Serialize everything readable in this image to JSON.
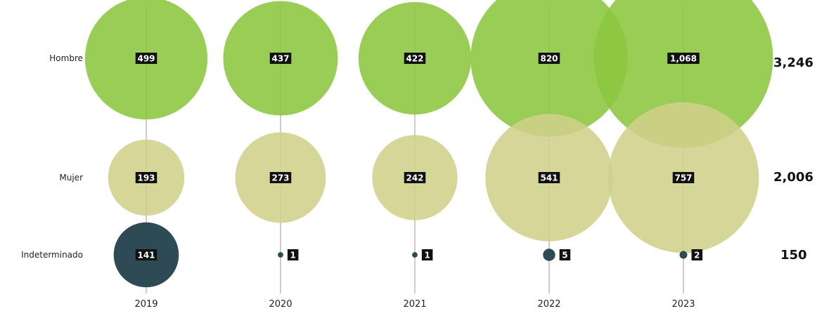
{
  "chart_data": {
    "type": "bubble",
    "categories": [
      "2019",
      "2020",
      "2021",
      "2022",
      "2023"
    ],
    "series": [
      {
        "name": "Hombre",
        "values": [
          499,
          437,
          422,
          820,
          1068
        ],
        "labels": [
          "499",
          "437",
          "422",
          "820",
          "1,068"
        ],
        "total": "3,246",
        "color": "#8cc63f"
      },
      {
        "name": "Mujer",
        "values": [
          193,
          273,
          242,
          541,
          757
        ],
        "labels": [
          "193",
          "273",
          "242",
          "541",
          "757"
        ],
        "total": "2,006",
        "color": "#cfd08a"
      },
      {
        "name": "Indeterminado",
        "values": [
          141,
          1,
          1,
          5,
          2
        ],
        "labels": [
          "141",
          "1",
          "1",
          "5",
          "2"
        ],
        "total": "150",
        "color": "#2e4a55"
      }
    ],
    "colors": {
      "label_box": "#111111",
      "guide_line": "#999999"
    },
    "grid": false
  }
}
